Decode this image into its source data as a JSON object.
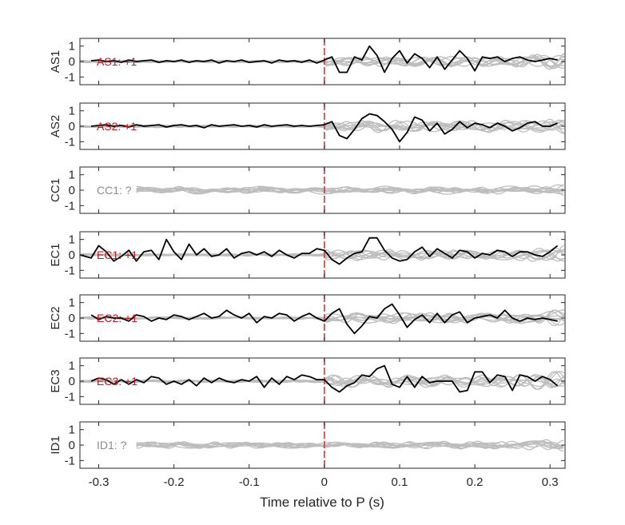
{
  "chart_data": {
    "type": "line",
    "xlabel": "Time relative to P (s)",
    "xlim": [
      -0.325,
      0.32
    ],
    "xticks": [
      -0.3,
      -0.2,
      -0.1,
      0,
      0.1,
      0.2,
      0.3
    ],
    "xtick_labels": [
      "-0.3",
      "-0.2",
      "-0.1",
      "0",
      "0.1",
      "0.2",
      "0.3"
    ],
    "ylim": [
      -1.5,
      1.5
    ],
    "yticks": [
      1,
      0,
      -1
    ],
    "ytick_labels": [
      "1",
      "0",
      "-1"
    ],
    "marker_time": 0,
    "colors": {
      "active": "#000000",
      "background": "#bdbdbd",
      "marker": "#e8302a",
      "label_active": "#c4161c",
      "label_unknown": "#8c8c8c"
    },
    "panels": [
      {
        "name": "AS1",
        "annotation": "AS1: +1",
        "status": "active",
        "x": [
          -0.31,
          -0.3,
          -0.29,
          -0.28,
          -0.27,
          -0.26,
          -0.25,
          -0.24,
          -0.23,
          -0.22,
          -0.21,
          -0.2,
          -0.19,
          -0.18,
          -0.17,
          -0.16,
          -0.15,
          -0.14,
          -0.13,
          -0.12,
          -0.11,
          -0.1,
          -0.09,
          -0.08,
          -0.07,
          -0.06,
          -0.05,
          -0.04,
          -0.03,
          -0.02,
          -0.01,
          0.0,
          0.01,
          0.02,
          0.03,
          0.04,
          0.05,
          0.06,
          0.07,
          0.08,
          0.09,
          0.1,
          0.11,
          0.12,
          0.13,
          0.14,
          0.15,
          0.16,
          0.17,
          0.18,
          0.19,
          0.2,
          0.21,
          0.22,
          0.23,
          0.24,
          0.25,
          0.26,
          0.27,
          0.28,
          0.29,
          0.3,
          0.31
        ],
        "y": [
          0.05,
          0.1,
          0.0,
          0.05,
          -0.05,
          0.1,
          0.0,
          0.05,
          0.1,
          -0.05,
          0.05,
          0.0,
          0.1,
          -0.05,
          0.05,
          0.0,
          0.1,
          -0.1,
          0.05,
          0.0,
          0.1,
          -0.05,
          0.0,
          0.05,
          -0.1,
          0.1,
          0.0,
          0.05,
          -0.05,
          0.1,
          -0.1,
          0.1,
          0.3,
          -0.7,
          -0.7,
          0.3,
          0.1,
          1.0,
          0.4,
          -0.7,
          0.2,
          0.7,
          -0.1,
          0.5,
          0.2,
          -0.4,
          0.3,
          -0.5,
          0.1,
          0.7,
          0.2,
          -0.6,
          0.3,
          0.2,
          0.3,
          0.0,
          0.2,
          0.3,
          0.1,
          0.0,
          0.1,
          0.2,
          0.1
        ]
      },
      {
        "name": "AS2",
        "annotation": "AS2: +1",
        "status": "active",
        "x": [
          -0.31,
          -0.3,
          -0.29,
          -0.28,
          -0.27,
          -0.26,
          -0.25,
          -0.24,
          -0.23,
          -0.22,
          -0.21,
          -0.2,
          -0.19,
          -0.18,
          -0.17,
          -0.16,
          -0.15,
          -0.14,
          -0.13,
          -0.12,
          -0.11,
          -0.1,
          -0.09,
          -0.08,
          -0.07,
          -0.06,
          -0.05,
          -0.04,
          -0.03,
          -0.02,
          -0.01,
          0.0,
          0.01,
          0.02,
          0.03,
          0.04,
          0.05,
          0.06,
          0.07,
          0.08,
          0.09,
          0.1,
          0.11,
          0.12,
          0.13,
          0.14,
          0.15,
          0.16,
          0.17,
          0.18,
          0.19,
          0.2,
          0.21,
          0.22,
          0.23,
          0.24,
          0.25,
          0.26,
          0.27,
          0.28,
          0.29,
          0.3,
          0.31
        ],
        "y": [
          0.0,
          0.05,
          0.1,
          0.0,
          0.05,
          -0.05,
          0.1,
          0.0,
          0.05,
          0.1,
          -0.05,
          0.05,
          0.1,
          0.0,
          0.05,
          -0.1,
          0.1,
          0.0,
          0.05,
          0.1,
          0.0,
          0.05,
          -0.05,
          0.1,
          0.0,
          0.05,
          0.1,
          0.0,
          0.05,
          0.0,
          0.05,
          0.1,
          0.3,
          -0.6,
          -0.8,
          -0.2,
          0.5,
          0.8,
          0.7,
          0.3,
          -0.2,
          -1.0,
          -0.4,
          0.6,
          0.4,
          -0.3,
          0.2,
          -0.5,
          -0.2,
          0.3,
          -0.1,
          0.2,
          0.1,
          -0.1,
          0.2,
          0.0,
          -0.3,
          -0.1,
          0.2,
          0.3,
          0.0,
          0.0,
          0.2
        ]
      },
      {
        "name": "CC1",
        "annotation": "CC1: ?",
        "status": "unknown",
        "x": [],
        "y": []
      },
      {
        "name": "EC1",
        "annotation": "EC1: +1",
        "status": "active",
        "x": [
          -0.325,
          -0.31,
          -0.3,
          -0.29,
          -0.28,
          -0.27,
          -0.26,
          -0.25,
          -0.24,
          -0.23,
          -0.22,
          -0.21,
          -0.2,
          -0.19,
          -0.18,
          -0.17,
          -0.16,
          -0.15,
          -0.14,
          -0.13,
          -0.12,
          -0.11,
          -0.1,
          -0.09,
          -0.08,
          -0.07,
          -0.06,
          -0.05,
          -0.04,
          -0.03,
          -0.02,
          -0.01,
          0.0,
          0.01,
          0.02,
          0.03,
          0.04,
          0.05,
          0.06,
          0.07,
          0.08,
          0.09,
          0.1,
          0.11,
          0.12,
          0.13,
          0.14,
          0.15,
          0.16,
          0.17,
          0.18,
          0.19,
          0.2,
          0.21,
          0.22,
          0.23,
          0.24,
          0.25,
          0.26,
          0.27,
          0.28,
          0.29,
          0.3,
          0.31
        ],
        "y": [
          0.0,
          -0.2,
          0.6,
          0.2,
          -0.4,
          -0.1,
          0.3,
          -0.4,
          0.2,
          0.3,
          -0.3,
          1.0,
          0.2,
          -0.3,
          0.7,
          0.0,
          0.4,
          -0.1,
          0.0,
          0.4,
          -0.2,
          0.1,
          0.2,
          0.0,
          0.2,
          -0.1,
          0.3,
          0.0,
          -0.2,
          0.1,
          0.1,
          0.4,
          0.3,
          -0.3,
          -0.6,
          -0.2,
          0.1,
          0.2,
          1.1,
          1.1,
          0.3,
          -0.2,
          -0.4,
          -0.3,
          0.2,
          0.5,
          -0.1,
          0.4,
          0.1,
          -0.2,
          0.3,
          0.2,
          -0.2,
          0.1,
          0.0,
          0.3,
          0.2,
          -0.1,
          0.2,
          0.2,
          0.0,
          -0.1,
          0.2,
          0.6
        ]
      },
      {
        "name": "EC2",
        "annotation": "EC2: +1",
        "status": "active",
        "x": [
          -0.31,
          -0.3,
          -0.29,
          -0.28,
          -0.27,
          -0.26,
          -0.25,
          -0.24,
          -0.23,
          -0.22,
          -0.21,
          -0.2,
          -0.19,
          -0.18,
          -0.17,
          -0.16,
          -0.15,
          -0.14,
          -0.13,
          -0.12,
          -0.11,
          -0.1,
          -0.09,
          -0.08,
          -0.07,
          -0.06,
          -0.05,
          -0.04,
          -0.03,
          -0.02,
          -0.01,
          0.0,
          0.01,
          0.02,
          0.03,
          0.04,
          0.05,
          0.06,
          0.07,
          0.08,
          0.09,
          0.1,
          0.11,
          0.12,
          0.13,
          0.14,
          0.15,
          0.16,
          0.17,
          0.18,
          0.19,
          0.2,
          0.21,
          0.22,
          0.23,
          0.24,
          0.25,
          0.26,
          0.27,
          0.28,
          0.29,
          0.3,
          0.31
        ],
        "y": [
          0.2,
          -0.1,
          0.1,
          0.0,
          0.0,
          -0.2,
          0.2,
          0.1,
          -0.2,
          0.0,
          -0.1,
          0.2,
          0.1,
          -0.1,
          0.1,
          0.3,
          0.0,
          0.1,
          0.5,
          0.2,
          0.0,
          0.3,
          -0.3,
          0.1,
          0.0,
          0.3,
          0.2,
          -0.2,
          0.1,
          0.3,
          0.0,
          -0.2,
          0.3,
          0.6,
          -0.4,
          -1.0,
          -0.5,
          0.1,
          0.0,
          0.6,
          0.9,
          0.2,
          -0.6,
          -0.1,
          0.2,
          -0.3,
          0.3,
          -0.3,
          0.2,
          0.4,
          -0.3,
          0.0,
          0.1,
          0.2,
          0.0,
          0.5,
          0.0,
          -0.2,
          0.0,
          -0.1,
          0.0,
          -0.1,
          -0.2
        ]
      },
      {
        "name": "EC3",
        "annotation": "EC3: +1",
        "status": "active",
        "x": [
          -0.31,
          -0.3,
          -0.29,
          -0.28,
          -0.27,
          -0.26,
          -0.25,
          -0.24,
          -0.23,
          -0.22,
          -0.21,
          -0.2,
          -0.19,
          -0.18,
          -0.17,
          -0.16,
          -0.15,
          -0.14,
          -0.13,
          -0.12,
          -0.11,
          -0.1,
          -0.09,
          -0.08,
          -0.07,
          -0.06,
          -0.05,
          -0.04,
          -0.03,
          -0.02,
          -0.01,
          0.0,
          0.01,
          0.02,
          0.03,
          0.04,
          0.05,
          0.06,
          0.07,
          0.08,
          0.09,
          0.1,
          0.11,
          0.12,
          0.13,
          0.14,
          0.15,
          0.16,
          0.17,
          0.18,
          0.19,
          0.2,
          0.21,
          0.22,
          0.23,
          0.24,
          0.25,
          0.26,
          0.27,
          0.28,
          0.29,
          0.3,
          0.31
        ],
        "y": [
          0.0,
          0.2,
          0.1,
          -0.2,
          0.1,
          -0.2,
          0.1,
          -0.1,
          0.3,
          0.2,
          -0.2,
          0.0,
          -0.2,
          0.1,
          -0.3,
          0.2,
          -0.1,
          0.2,
          0.0,
          -0.1,
          0.1,
          0.0,
          0.3,
          -0.4,
          0.2,
          -0.2,
          0.3,
          0.1,
          0.4,
          0.3,
          0.1,
          0.1,
          -0.4,
          -0.7,
          -0.3,
          -0.1,
          0.4,
          0.3,
          0.8,
          1.0,
          -0.2,
          -0.4,
          0.3,
          -0.4,
          0.3,
          -0.1,
          0.0,
          0.0,
          0.0,
          -0.7,
          -0.6,
          0.6,
          0.6,
          -0.1,
          0.4,
          0.3,
          -0.6,
          0.4,
          0.3,
          0.0,
          0.3,
          0.1,
          -0.3
        ]
      },
      {
        "name": "ID1",
        "annotation": "ID1: ?",
        "status": "unknown",
        "x": [],
        "y": []
      }
    ]
  }
}
